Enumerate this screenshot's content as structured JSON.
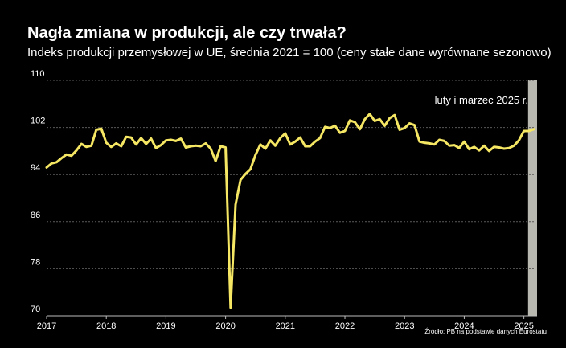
{
  "chart_data": {
    "type": "line",
    "title": "Nagła zmiana w produkcji, ale czy trwała?",
    "subtitle": "Indeks produkcji przemysłowej w UE, średnia 2021 = 100 (ceny stałe dane wyrównane sezonowo)",
    "ylim": [
      70,
      110
    ],
    "yticks": [
      "110",
      "102",
      "94",
      "86",
      "78",
      "70"
    ],
    "xlim": [
      "2017-01",
      "2025-03"
    ],
    "xticks": [
      "2017",
      "2018",
      "2019",
      "2020",
      "2021",
      "2022",
      "2023",
      "2024",
      "2025"
    ],
    "grid": true,
    "annotation": "luty i marzec 2025 r.",
    "source": "Źródło: PB na podstawie danych Eurostatu",
    "colors": {
      "line": "#f5e663",
      "highlight": "#b8b8b0",
      "grid": "#5a5a5a",
      "text": "#ffffff"
    },
    "series": [
      {
        "x": [
          "2017-01",
          "2017-02",
          "2017-03",
          "2017-04",
          "2017-05",
          "2017-06",
          "2017-07",
          "2017-08",
          "2017-09",
          "2017-10",
          "2017-11",
          "2017-12",
          "2018-01",
          "2018-02",
          "2018-03",
          "2018-04",
          "2018-05",
          "2018-06",
          "2018-07",
          "2018-08",
          "2018-09",
          "2018-10",
          "2018-11",
          "2018-12",
          "2019-01",
          "2019-02",
          "2019-03",
          "2019-04",
          "2019-05",
          "2019-06",
          "2019-07",
          "2019-08",
          "2019-09",
          "2019-10",
          "2019-11",
          "2019-12",
          "2020-01",
          "2020-02",
          "2020-03",
          "2020-04",
          "2020-05",
          "2020-06",
          "2020-07",
          "2020-08",
          "2020-09",
          "2020-10",
          "2020-11",
          "2020-12",
          "2021-01",
          "2021-02",
          "2021-03",
          "2021-04",
          "2021-05",
          "2021-06",
          "2021-07",
          "2021-08",
          "2021-09",
          "2021-10",
          "2021-11",
          "2021-12",
          "2022-01",
          "2022-02",
          "2022-03",
          "2022-04",
          "2022-05",
          "2022-06",
          "2022-07",
          "2022-08",
          "2022-09",
          "2022-10",
          "2022-11",
          "2022-12",
          "2023-01",
          "2023-02",
          "2023-03",
          "2023-04",
          "2023-05",
          "2023-06",
          "2023-07",
          "2023-08",
          "2023-09",
          "2023-10",
          "2023-11",
          "2023-12",
          "2024-01",
          "2024-02",
          "2024-03",
          "2024-04",
          "2024-05",
          "2024-06",
          "2024-07",
          "2024-08",
          "2024-09",
          "2024-10",
          "2024-11",
          "2024-12",
          "2025-01",
          "2025-02",
          "2025-03"
        ],
        "values": [
          95.2,
          95.9,
          96.1,
          96.8,
          97.4,
          97.2,
          98.1,
          99.2,
          98.7,
          98.9,
          101.6,
          101.8,
          99.4,
          98.7,
          99.3,
          98.8,
          100.4,
          100.3,
          99.1,
          100.2,
          99.2,
          100.1,
          98.5,
          99.0,
          99.8,
          99.9,
          99.7,
          100.1,
          98.6,
          98.8,
          98.9,
          98.8,
          99.3,
          98.4,
          96.3,
          98.8,
          98.6,
          71.4,
          88.9,
          93.1,
          94.1,
          94.9,
          97.3,
          99.1,
          98.4,
          99.8,
          98.9,
          100.2,
          101.0,
          99.1,
          99.6,
          100.3,
          98.8,
          98.8,
          99.6,
          100.2,
          102.1,
          101.9,
          102.3,
          101.1,
          101.4,
          103.2,
          102.9,
          101.7,
          103.4,
          104.3,
          103.1,
          103.4,
          102.3,
          103.6,
          104.1,
          101.6,
          101.9,
          102.7,
          102.4,
          99.6,
          99.4,
          99.3,
          99.1,
          99.9,
          99.7,
          98.9,
          99.0,
          98.5,
          99.6,
          98.3,
          98.7,
          98.1,
          98.9,
          98.0,
          98.7,
          98.6,
          98.4,
          98.5,
          98.9,
          99.8,
          101.4,
          101.4,
          101.7
        ]
      }
    ]
  }
}
